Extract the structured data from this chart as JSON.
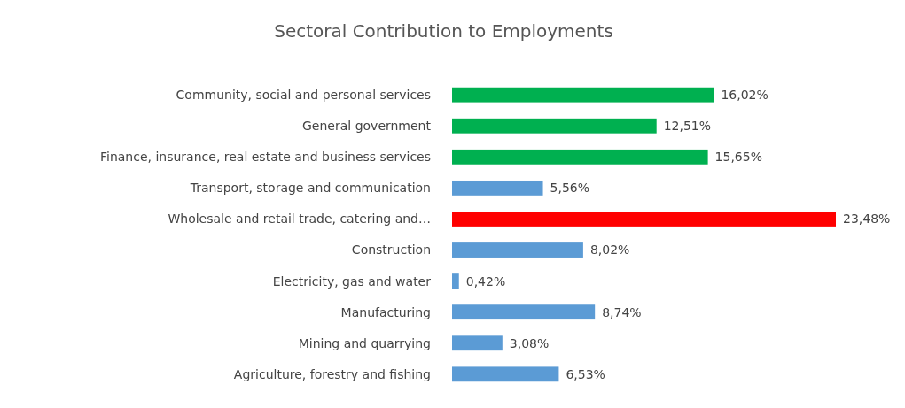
{
  "chart_data": {
    "type": "bar",
    "orientation": "horizontal",
    "title": "Sectoral Contribution to Employments",
    "categories": [
      "Community, social and personal services",
      "General government",
      "Finance, insurance, real estate and business services",
      "Transport, storage and communication",
      "Wholesale and retail trade, catering and…",
      "Construction",
      "Electricity, gas and water",
      "Manufacturing",
      "Mining and quarrying",
      "Agriculture, forestry and fishing"
    ],
    "values": [
      16.02,
      12.51,
      15.65,
      5.56,
      23.48,
      8.02,
      0.42,
      8.74,
      3.08,
      6.53
    ],
    "colors": [
      "#00b050",
      "#00b050",
      "#00b050",
      "#5b9bd5",
      "#ff0000",
      "#5b9bd5",
      "#5b9bd5",
      "#5b9bd5",
      "#5b9bd5",
      "#5b9bd5"
    ],
    "value_labels": [
      "16,02%",
      "12,51%",
      "15,65%",
      "5,56%",
      "23,48%",
      "8,02%",
      "0,42%",
      "8,74%",
      "3,08%",
      "6,53%"
    ],
    "grid": false
  }
}
